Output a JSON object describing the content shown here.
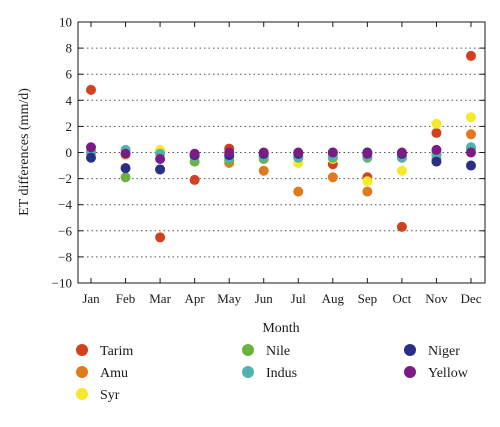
{
  "chart_data": {
    "type": "scatter",
    "ylabel": "ET differences (mm/d)",
    "xlabel": "Month",
    "ylim": [
      -10,
      10
    ],
    "yticks": [
      -10,
      -8,
      -6,
      -4,
      -2,
      0,
      2,
      4,
      6,
      8,
      10
    ],
    "grid": "horizontal dotted",
    "legend_placement": "bottom",
    "categories": [
      "Jan",
      "Feb",
      "Mar",
      "Apr",
      "May",
      "Jun",
      "Jul",
      "Aug",
      "Sep",
      "Oct",
      "Nov",
      "Dec"
    ],
    "series": [
      {
        "name": "Tarim",
        "color": "#d2401e",
        "values": [
          4.8,
          -0.2,
          -6.5,
          -2.1,
          0.3,
          -0.2,
          -0.4,
          -0.9,
          -1.9,
          -5.7,
          1.5,
          7.4
        ]
      },
      {
        "name": "Amu",
        "color": "#e07a1c",
        "values": [
          0.1,
          -0.1,
          0.1,
          -0.3,
          -0.8,
          -1.4,
          -3.0,
          -1.9,
          -3.0,
          -0.4,
          -0.5,
          1.4
        ]
      },
      {
        "name": "Syr",
        "color": "#f5e92a",
        "values": [
          0.0,
          -0.2,
          0.2,
          -0.3,
          -0.5,
          -0.3,
          -0.8,
          -0.5,
          -2.2,
          -1.4,
          2.2,
          2.7
        ]
      },
      {
        "name": "Nile",
        "color": "#6ab23e",
        "values": [
          0.0,
          -1.9,
          -1.3,
          -0.7,
          -0.6,
          -0.5,
          -0.3,
          -0.4,
          -0.4,
          -0.3,
          -0.1,
          0.3
        ]
      },
      {
        "name": "Indus",
        "color": "#4fb2ae",
        "values": [
          0.0,
          0.2,
          -0.1,
          -0.3,
          -0.4,
          -0.3,
          -0.4,
          -0.3,
          -0.3,
          -0.4,
          -0.2,
          0.4
        ]
      },
      {
        "name": "Niger",
        "color": "#2b2e85",
        "values": [
          -0.4,
          -1.2,
          -1.3,
          -0.2,
          -0.2,
          -0.1,
          -0.1,
          0.0,
          0.0,
          -0.1,
          -0.7,
          -1.0
        ]
      },
      {
        "name": "Yellow",
        "color": "#7b1c86",
        "values": [
          0.4,
          -0.1,
          -0.5,
          -0.1,
          0.0,
          0.0,
          0.0,
          0.0,
          -0.1,
          0.0,
          0.2,
          0.0
        ]
      }
    ]
  }
}
